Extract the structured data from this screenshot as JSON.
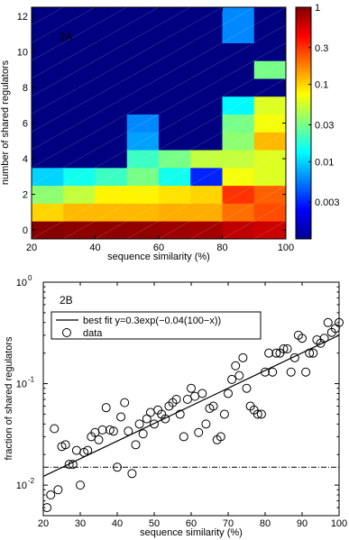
{
  "chart_data": [
    {
      "panel": "2A",
      "type": "heatmap",
      "xlabel": "sequence similarity (%)",
      "ylabel": "number of shared regulators",
      "x_edges": [
        20,
        30,
        40,
        50,
        60,
        70,
        80,
        90,
        100
      ],
      "xticks": [
        20,
        40,
        60,
        80,
        100
      ],
      "xtick_labels": [
        "20",
        "40",
        "60",
        "80",
        "100"
      ],
      "y_edges": [
        -0.5,
        0.5,
        1.5,
        2.5,
        3.5,
        4.5,
        5.5,
        6.5,
        7.5,
        8.5,
        9.5,
        10.5,
        11.5,
        12.5
      ],
      "yticks": [
        0,
        2,
        4,
        6,
        8,
        10,
        12
      ],
      "ytick_labels": [
        "0",
        "2",
        "4",
        "6",
        "8",
        "10",
        "12"
      ],
      "colorbar": {
        "scale": "log",
        "range": [
          0.001,
          1
        ],
        "ticks": [
          1,
          0.3,
          0.1,
          0.03,
          0.01,
          0.003
        ],
        "tick_labels": [
          "1",
          "0.3",
          "0.1",
          "0.03",
          "0.01",
          "0.003"
        ]
      },
      "rows_from_bottom": [
        [
          0.95,
          0.92,
          0.9,
          0.88,
          0.82,
          0.78,
          0.65,
          0.6
        ],
        [
          0.1,
          0.12,
          0.12,
          0.12,
          0.13,
          0.13,
          0.2,
          0.25
        ],
        [
          0.035,
          0.05,
          0.08,
          0.08,
          0.09,
          0.1,
          0.3,
          0.22
        ],
        [
          0.01,
          0.015,
          0.02,
          0.03,
          0.015,
          0.003,
          0.07,
          0.06
        ],
        [
          0.001,
          0.001,
          0.001,
          0.02,
          0.03,
          0.05,
          0.05,
          0.06
        ],
        [
          0.001,
          0.001,
          0.001,
          0.007,
          0.001,
          0.001,
          0.035,
          0.12
        ],
        [
          0.001,
          0.001,
          0.001,
          0.006,
          0.001,
          0.001,
          0.03,
          0.07
        ],
        [
          0.001,
          0.001,
          0.001,
          0.001,
          0.001,
          0.001,
          0.013,
          0.06
        ],
        [
          0.001,
          0.001,
          0.001,
          0.001,
          0.001,
          0.001,
          0.001,
          0.001
        ],
        [
          0.001,
          0.001,
          0.001,
          0.001,
          0.001,
          0.001,
          0.001,
          0.03
        ],
        [
          0.001,
          0.001,
          0.001,
          0.001,
          0.001,
          0.001,
          0.001,
          0.001
        ],
        [
          0.001,
          0.001,
          0.001,
          0.001,
          0.001,
          0.001,
          0.006,
          0.001
        ],
        [
          0.001,
          0.001,
          0.001,
          0.001,
          0.001,
          0.001,
          0.006,
          0.001
        ]
      ]
    },
    {
      "panel": "2B",
      "type": "scatter",
      "xlabel": "sequence similarity (%)",
      "ylabel": "fraction of shared regulators",
      "xlim": [
        20,
        100
      ],
      "ylim": [
        0.005,
        1
      ],
      "yscale": "log",
      "grid": false,
      "xticks": [
        20,
        30,
        40,
        50,
        60,
        70,
        80,
        90,
        100
      ],
      "xtick_labels": [
        "20",
        "30",
        "40",
        "50",
        "60",
        "70",
        "80",
        "90",
        "100"
      ],
      "ytick_labels": [
        {
          "base": "10",
          "exp": "-2",
          "value": 0.01
        },
        {
          "base": "10",
          "exp": "-1",
          "value": 0.1
        },
        {
          "base": "10",
          "exp": "0",
          "value": 1
        }
      ],
      "legend_position": "top-left",
      "series": [
        {
          "name": "best fit y=0.3exp(−0.04(100−x))",
          "kind": "line",
          "x": [
            20,
            100
          ],
          "y": [
            0.0122,
            0.3
          ]
        },
        {
          "name": "data",
          "kind": "scatter",
          "points": [
            [
              21,
              0.006
            ],
            [
              22,
              0.008
            ],
            [
              23,
              0.036
            ],
            [
              24,
              0.009
            ],
            [
              25,
              0.024
            ],
            [
              26,
              0.025
            ],
            [
              27,
              0.016
            ],
            [
              28,
              0.016
            ],
            [
              29,
              0.022
            ],
            [
              30,
              0.01
            ],
            [
              31,
              0.021
            ],
            [
              32,
              0.022
            ],
            [
              33,
              0.03
            ],
            [
              34,
              0.033
            ],
            [
              35,
              0.028
            ],
            [
              36,
              0.035
            ],
            [
              37,
              0.058
            ],
            [
              38,
              0.035
            ],
            [
              39,
              0.034
            ],
            [
              40,
              0.015
            ],
            [
              41,
              0.047
            ],
            [
              42,
              0.065
            ],
            [
              43,
              0.034
            ],
            [
              44,
              0.013
            ],
            [
              45,
              0.025
            ],
            [
              46,
              0.04
            ],
            [
              47,
              0.032
            ],
            [
              48,
              0.045
            ],
            [
              49,
              0.052
            ],
            [
              50,
              0.04
            ],
            [
              51,
              0.055
            ],
            [
              52,
              0.05
            ],
            [
              53,
              0.045
            ],
            [
              54,
              0.06
            ],
            [
              55,
              0.065
            ],
            [
              56,
              0.07
            ],
            [
              57,
              0.05
            ],
            [
              58,
              0.03
            ],
            [
              59,
              0.07
            ],
            [
              60,
              0.09
            ],
            [
              61,
              0.075
            ],
            [
              62,
              0.033
            ],
            [
              63,
              0.08
            ],
            [
              64,
              0.04
            ],
            [
              65,
              0.057
            ],
            [
              66,
              0.06
            ],
            [
              67,
              0.028
            ],
            [
              68,
              0.03
            ],
            [
              69,
              0.05
            ],
            [
              70,
              0.08
            ],
            [
              71,
              0.11
            ],
            [
              72,
              0.15
            ],
            [
              73,
              0.12
            ],
            [
              74,
              0.18
            ],
            [
              75,
              0.09
            ],
            [
              76,
              0.06
            ],
            [
              77,
              0.055
            ],
            [
              78,
              0.05
            ],
            [
              79,
              0.05
            ],
            [
              80,
              0.13
            ],
            [
              81,
              0.2
            ],
            [
              82,
              0.13
            ],
            [
              83,
              0.2
            ],
            [
              84,
              0.2
            ],
            [
              85,
              0.22
            ],
            [
              86,
              0.22
            ],
            [
              87,
              0.13
            ],
            [
              88,
              0.18
            ],
            [
              89,
              0.3
            ],
            [
              90,
              0.28
            ],
            [
              91,
              0.13
            ],
            [
              92,
              0.2
            ],
            [
              93,
              0.2
            ],
            [
              94,
              0.27
            ],
            [
              95,
              0.25
            ],
            [
              96,
              0.28
            ],
            [
              97,
              0.4
            ],
            [
              98,
              0.32
            ],
            [
              99,
              0.35
            ],
            [
              100,
              0.4
            ]
          ]
        }
      ]
    }
  ]
}
